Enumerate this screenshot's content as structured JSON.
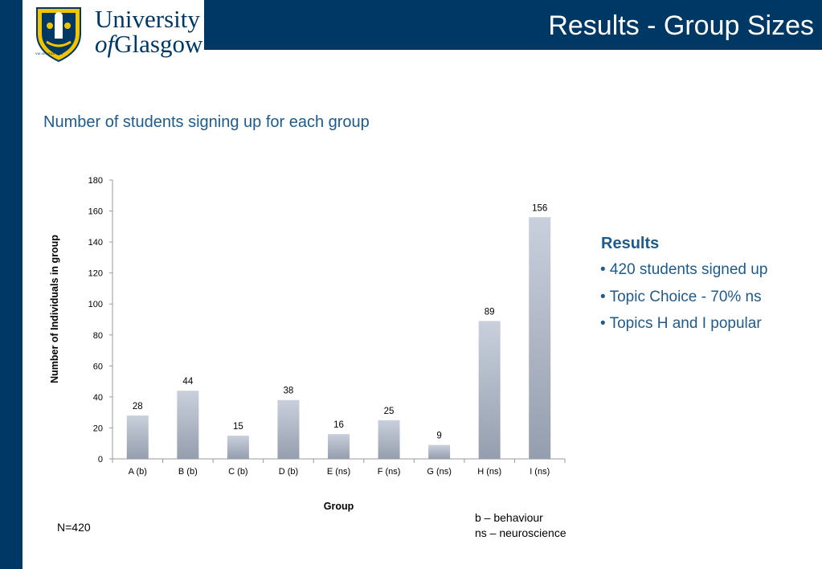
{
  "header": {
    "title": "Results - Group Sizes",
    "logo_line1": "University",
    "logo_of": "of",
    "logo_line2": "Glasgow",
    "motto": "VIA VERITAS VITA",
    "brand_color": "#003865"
  },
  "subtitle": "Number of students signing up for each group",
  "results": {
    "heading": "Results",
    "bullets": [
      "• 420 students signed up",
      "• Topic Choice - 70% ns",
      "• Topics H and I popular"
    ]
  },
  "notes": {
    "n": "N=420",
    "legend_b": "b – behaviour",
    "legend_ns": "ns – neuroscience"
  },
  "chart_data": {
    "type": "bar",
    "categories": [
      "A (b)",
      "B (b)",
      "C (b)",
      "D (b)",
      "E (ns)",
      "F (ns)",
      "G (ns)",
      "H (ns)",
      "I (ns)"
    ],
    "values": [
      28,
      44,
      15,
      38,
      16,
      25,
      9,
      89,
      156
    ],
    "title": "",
    "xlabel": "Group",
    "ylabel": "Number of Individuals in group",
    "ylim": [
      0,
      180
    ],
    "yticks": [
      0,
      20,
      40,
      60,
      80,
      100,
      120,
      140,
      160,
      180
    ],
    "grid": false,
    "data_labels": true,
    "bar_color_top": "#c9d0dc",
    "bar_color_bottom": "#959eae"
  }
}
